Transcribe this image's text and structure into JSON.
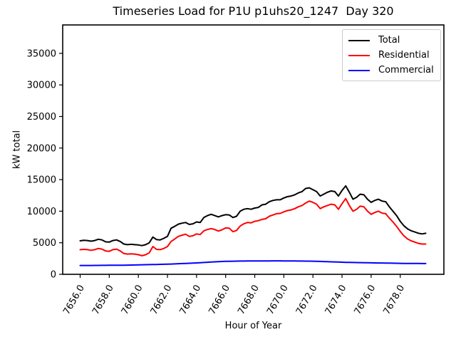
{
  "chart_data": {
    "type": "line",
    "title": "Timeseries Load for P1U p1uhs20_1247  Day 320",
    "xlabel": "Hour of Year",
    "ylabel": "kW total",
    "grid": false,
    "legend_position": "upper right",
    "xlim": [
      7654.8,
      7681.0
    ],
    "ylim": [
      0,
      39500
    ],
    "x_ticks": [
      7656,
      7658,
      7660,
      7662,
      7664,
      7666,
      7668,
      7670,
      7672,
      7674,
      7676,
      7678
    ],
    "x_tick_labels": [
      "7656.0",
      "7658.0",
      "7660.0",
      "7662.0",
      "7664.0",
      "7666.0",
      "7668.0",
      "7670.0",
      "7672.0",
      "7674.0",
      "7676.0",
      "7678.0"
    ],
    "y_ticks": [
      0,
      5000,
      10000,
      15000,
      20000,
      25000,
      30000,
      35000
    ],
    "y_tick_labels": [
      "0",
      "5000",
      "10000",
      "15000",
      "20000",
      "25000",
      "30000",
      "35000"
    ],
    "x": [
      7656.0,
      7656.25,
      7656.5,
      7656.75,
      7657.0,
      7657.25,
      7657.5,
      7657.75,
      7658.0,
      7658.25,
      7658.5,
      7658.75,
      7659.0,
      7659.25,
      7659.5,
      7659.75,
      7660.0,
      7660.25,
      7660.5,
      7660.75,
      7661.0,
      7661.25,
      7661.5,
      7661.75,
      7662.0,
      7662.25,
      7662.5,
      7662.75,
      7663.0,
      7663.25,
      7663.5,
      7663.75,
      7664.0,
      7664.25,
      7664.5,
      7664.75,
      7665.0,
      7665.25,
      7665.5,
      7665.75,
      7666.0,
      7666.25,
      7666.5,
      7666.75,
      7667.0,
      7667.25,
      7667.5,
      7667.75,
      7668.0,
      7668.25,
      7668.5,
      7668.75,
      7669.0,
      7669.25,
      7669.5,
      7669.75,
      7670.0,
      7670.25,
      7670.5,
      7670.75,
      7671.0,
      7671.25,
      7671.5,
      7671.75,
      7672.0,
      7672.25,
      7672.5,
      7672.75,
      7673.0,
      7673.25,
      7673.5,
      7673.75,
      7674.0,
      7674.25,
      7674.5,
      7674.75,
      7675.0,
      7675.25,
      7675.5,
      7675.75,
      7676.0,
      7676.25,
      7676.5,
      7676.75,
      7677.0,
      7677.25,
      7677.5,
      7677.75,
      7678.0,
      7678.25,
      7678.5,
      7678.75,
      7679.0,
      7679.25,
      7679.5,
      7679.75
    ],
    "series": [
      {
        "name": "Total",
        "color": "#000000",
        "values": [
          5300,
          5400,
          5350,
          5250,
          5350,
          5550,
          5450,
          5150,
          5100,
          5350,
          5450,
          5200,
          4800,
          4700,
          4750,
          4700,
          4650,
          4550,
          4700,
          5000,
          5900,
          5500,
          5450,
          5700,
          6000,
          7300,
          7600,
          7950,
          8100,
          8200,
          7900,
          8000,
          8300,
          8200,
          9000,
          9300,
          9500,
          9300,
          9100,
          9300,
          9450,
          9400,
          9000,
          9200,
          10000,
          10300,
          10400,
          10300,
          10500,
          10600,
          11000,
          11100,
          11500,
          11700,
          11800,
          11800,
          12100,
          12300,
          12400,
          12600,
          12900,
          13100,
          13600,
          13700,
          13400,
          13100,
          12400,
          12700,
          13000,
          13200,
          13100,
          12400,
          13300,
          14000,
          13000,
          11900,
          12200,
          12700,
          12600,
          11900,
          11400,
          11700,
          11900,
          11600,
          11500,
          10700,
          10000,
          9300,
          8400,
          7700,
          7200,
          6900,
          6700,
          6500,
          6400,
          6500
        ]
      },
      {
        "name": "Residential",
        "color": "#ff0000",
        "values": [
          3900,
          3950,
          3900,
          3800,
          3900,
          4100,
          4000,
          3700,
          3650,
          3900,
          4000,
          3700,
          3300,
          3200,
          3250,
          3200,
          3100,
          2950,
          3100,
          3400,
          4400,
          3950,
          3900,
          4100,
          4400,
          5200,
          5600,
          6000,
          6200,
          6350,
          6000,
          6100,
          6400,
          6300,
          6900,
          7100,
          7250,
          7100,
          6850,
          7050,
          7350,
          7300,
          6750,
          6950,
          7650,
          8000,
          8200,
          8150,
          8400,
          8500,
          8700,
          8800,
          9200,
          9400,
          9600,
          9650,
          9900,
          10100,
          10200,
          10400,
          10700,
          10900,
          11300,
          11600,
          11400,
          11100,
          10400,
          10700,
          10900,
          11100,
          11000,
          10300,
          11200,
          12000,
          10900,
          10000,
          10300,
          10800,
          10700,
          10000,
          9500,
          9800,
          10000,
          9700,
          9600,
          8900,
          8300,
          7600,
          6800,
          6100,
          5600,
          5300,
          5100,
          4900,
          4800,
          4800
        ]
      },
      {
        "name": "Commercial",
        "color": "#0000ff",
        "values": [
          1400,
          1400,
          1400,
          1400,
          1410,
          1410,
          1420,
          1420,
          1430,
          1430,
          1440,
          1440,
          1450,
          1460,
          1470,
          1480,
          1500,
          1510,
          1520,
          1540,
          1550,
          1560,
          1580,
          1590,
          1610,
          1630,
          1650,
          1680,
          1700,
          1730,
          1750,
          1780,
          1810,
          1840,
          1870,
          1910,
          1950,
          1980,
          2000,
          2030,
          2050,
          2070,
          2080,
          2090,
          2100,
          2100,
          2110,
          2110,
          2110,
          2120,
          2120,
          2120,
          2120,
          2130,
          2130,
          2130,
          2120,
          2120,
          2110,
          2110,
          2100,
          2100,
          2090,
          2090,
          2080,
          2060,
          2040,
          2020,
          2000,
          1980,
          1960,
          1940,
          1920,
          1900,
          1890,
          1870,
          1860,
          1850,
          1840,
          1830,
          1820,
          1810,
          1800,
          1790,
          1780,
          1770,
          1760,
          1750,
          1740,
          1730,
          1725,
          1720,
          1715,
          1710,
          1705,
          1700
        ]
      }
    ]
  }
}
